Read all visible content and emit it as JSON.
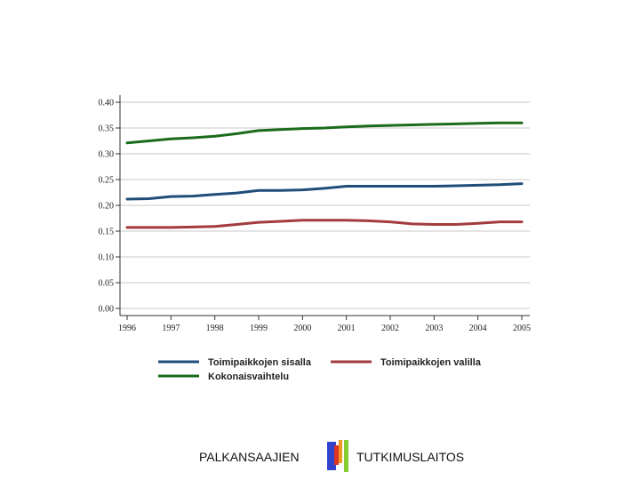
{
  "chart_data": {
    "type": "line",
    "x": [
      1996,
      1996.5,
      1997,
      1997.5,
      1998,
      1998.5,
      1999,
      1999.5,
      2000,
      2000.5,
      2001,
      2001.5,
      2002,
      2002.5,
      2003,
      2003.5,
      2004,
      2004.5,
      2005
    ],
    "x_ticks": [
      "1996",
      "1997",
      "1998",
      "1999",
      "2000",
      "2001",
      "2002",
      "2003",
      "2004",
      "2005"
    ],
    "y_ticks": [
      "0.00",
      "0.05",
      "0.10",
      "0.15",
      "0.20",
      "0.25",
      "0.30",
      "0.35",
      "0.40"
    ],
    "xlim": [
      1996,
      2005
    ],
    "ylim": [
      0,
      0.4
    ],
    "grid": true,
    "legend_position": "bottom",
    "series": [
      {
        "name": "Toimipaikkojen sisalla",
        "color": "#1f4e79",
        "values": [
          0.212,
          0.213,
          0.217,
          0.218,
          0.221,
          0.224,
          0.229,
          0.229,
          0.23,
          0.233,
          0.237,
          0.237,
          0.237,
          0.237,
          0.237,
          0.238,
          0.239,
          0.24,
          0.242
        ]
      },
      {
        "name": "Toimipaikkojen valilla",
        "color": "#a33b3b",
        "values": [
          0.157,
          0.157,
          0.157,
          0.158,
          0.159,
          0.163,
          0.167,
          0.169,
          0.171,
          0.171,
          0.171,
          0.17,
          0.168,
          0.164,
          0.163,
          0.163,
          0.165,
          0.168,
          0.168
        ]
      },
      {
        "name": "Kokonaisvaihtelu",
        "color": "#1a6b1a",
        "values": [
          0.321,
          0.325,
          0.329,
          0.331,
          0.334,
          0.339,
          0.345,
          0.347,
          0.349,
          0.35,
          0.352,
          0.354,
          0.355,
          0.356,
          0.357,
          0.358,
          0.359,
          0.36,
          0.36
        ]
      }
    ]
  },
  "footer": {
    "left_text": "PALKANSAAJIEN",
    "right_text": "TUTKIMUSLAITOS",
    "logo_colors": [
      "#3344cc",
      "#dd3322",
      "#ee9922",
      "#88cc33"
    ]
  }
}
